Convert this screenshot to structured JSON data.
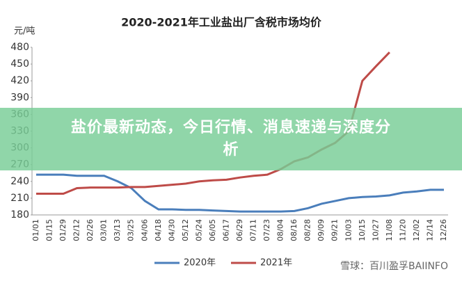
{
  "chart_data": {
    "type": "line",
    "title": "2020-2021年工业盐出厂含税市场均价",
    "ylabel": "元/吨",
    "categories": [
      "01/01",
      "01/15",
      "01/29",
      "02/12",
      "02/26",
      "03/01",
      "03/13",
      "03/25",
      "04/06",
      "04/18",
      "04/30",
      "05/12",
      "05/24",
      "06/05",
      "06/17",
      "06/29",
      "07/11",
      "07/23",
      "08/04",
      "08/16",
      "08/28",
      "09/09",
      "09/21",
      "10/03",
      "10/15",
      "10/27",
      "11/08",
      "11/20",
      "12/02",
      "12/14",
      "12/26"
    ],
    "series": [
      {
        "name": "2020年",
        "color": "#4a7ebb",
        "values": [
          252,
          252,
          252,
          250,
          250,
          250,
          240,
          228,
          205,
          190,
          190,
          189,
          189,
          188,
          187,
          186,
          186,
          186,
          186,
          187,
          192,
          200,
          205,
          210,
          212,
          213,
          215,
          220,
          222,
          225,
          225
        ]
      },
      {
        "name": "2021年",
        "color": "#be4b48",
        "values": [
          218,
          218,
          218,
          228,
          229,
          229,
          229,
          230,
          230,
          232,
          234,
          236,
          240,
          242,
          243,
          247,
          250,
          252,
          262,
          276,
          283,
          297,
          309,
          330,
          420,
          446,
          471,
          null,
          null,
          null,
          null
        ]
      }
    ],
    "ylim": [
      180,
      480
    ],
    "yticks": [
      180,
      210,
      240,
      270,
      300,
      330,
      360,
      390,
      420,
      450,
      480
    ],
    "legend": "bottom"
  },
  "banner": {
    "title": "盐价最新动态，今日行情、消息速递与深度分析"
  },
  "watermark": "雪球：百川盈孚BAIINFO"
}
